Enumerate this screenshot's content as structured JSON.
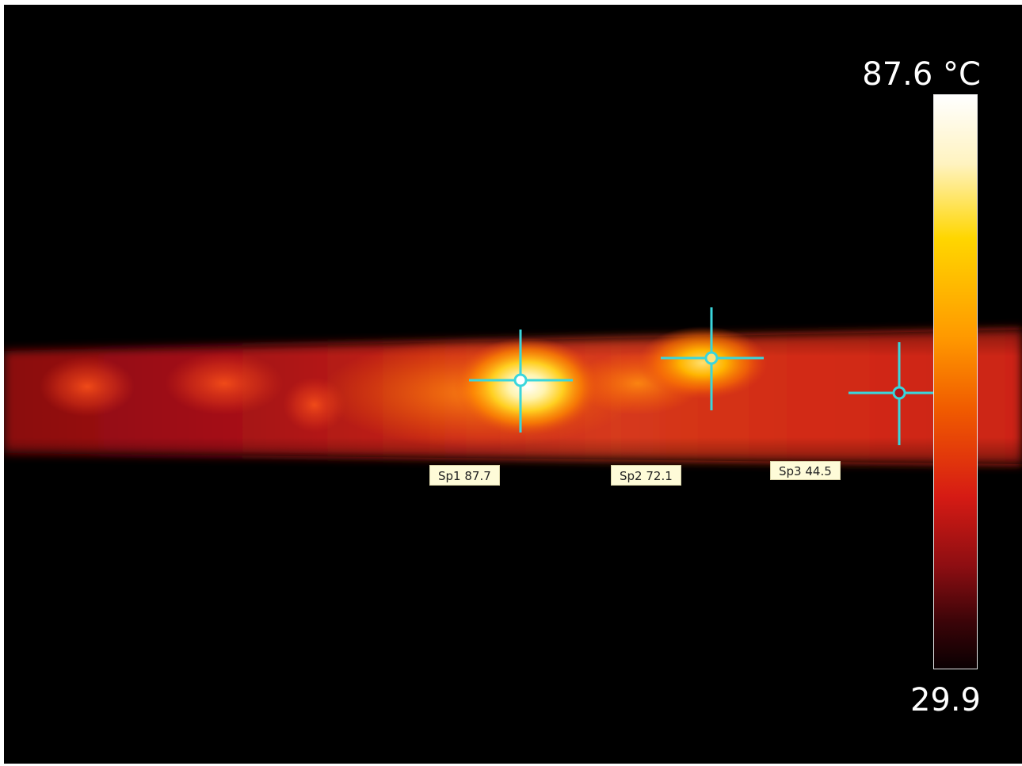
{
  "scale": {
    "max_label": "87.6 °C",
    "min_label": "29.9",
    "max_value": 87.6,
    "min_value": 29.9,
    "unit": "°C"
  },
  "spots": [
    {
      "label": "Sp1 87.7",
      "name": "Sp1",
      "value": 87.7
    },
    {
      "label": "Sp2 72.1",
      "name": "Sp2",
      "value": 72.1
    },
    {
      "label": "Sp3 44.5",
      "name": "Sp3",
      "value": 44.5
    }
  ],
  "colors": {
    "background": "#000000",
    "cursor": "#3ad6dc",
    "label_bg": "#fefbd8",
    "palette": [
      "#ffffff",
      "#ffd600",
      "#ff9a00",
      "#d61b14",
      "#3a0408",
      "#0a0002"
    ]
  }
}
